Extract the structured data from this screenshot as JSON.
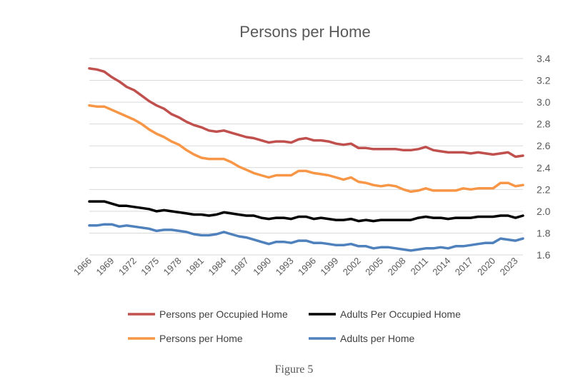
{
  "chart_data": {
    "type": "line",
    "title": "Persons per Home",
    "xlabel": "",
    "ylabel": "",
    "ylim": [
      1.6,
      3.4
    ],
    "yticks": [
      1.6,
      1.8,
      2.0,
      2.2,
      2.4,
      2.6,
      2.8,
      3.0,
      3.2,
      3.4
    ],
    "ytick_labels": [
      "1.6",
      "1.8",
      "2.0",
      "2.2",
      "2.4",
      "2.6",
      "2.8",
      "3.0",
      "3.2",
      "3.4"
    ],
    "y_axis_side": "right",
    "grid": true,
    "x_start": 1966,
    "x_end": 2024,
    "xtick_labels": [
      "1966",
      "1969",
      "1972",
      "1975",
      "1978",
      "1981",
      "1984",
      "1987",
      "1990",
      "1993",
      "1996",
      "1999",
      "2002",
      "2005",
      "2008",
      "2011",
      "2014",
      "2017",
      "2020",
      "2023"
    ],
    "legend_position": "bottom",
    "series": [
      {
        "name": "Persons per Occupied Home",
        "color": "#C0504D",
        "values": [
          3.31,
          3.3,
          3.28,
          3.23,
          3.19,
          3.14,
          3.11,
          3.06,
          3.01,
          2.97,
          2.94,
          2.89,
          2.86,
          2.82,
          2.79,
          2.77,
          2.74,
          2.73,
          2.74,
          2.72,
          2.7,
          2.68,
          2.67,
          2.65,
          2.63,
          2.64,
          2.64,
          2.63,
          2.66,
          2.67,
          2.65,
          2.65,
          2.64,
          2.62,
          2.61,
          2.62,
          2.58,
          2.58,
          2.57,
          2.57,
          2.57,
          2.57,
          2.56,
          2.56,
          2.57,
          2.59,
          2.56,
          2.55,
          2.54,
          2.54,
          2.54,
          2.53,
          2.54,
          2.53,
          2.52,
          2.53,
          2.54,
          2.5,
          2.51
        ]
      },
      {
        "name": "Adults Per Occupied Home",
        "color": "#000000",
        "values": [
          2.09,
          2.09,
          2.09,
          2.07,
          2.05,
          2.05,
          2.04,
          2.03,
          2.02,
          2.0,
          2.01,
          2.0,
          1.99,
          1.98,
          1.97,
          1.97,
          1.96,
          1.97,
          1.99,
          1.98,
          1.97,
          1.96,
          1.96,
          1.94,
          1.93,
          1.94,
          1.94,
          1.93,
          1.95,
          1.95,
          1.93,
          1.94,
          1.93,
          1.92,
          1.92,
          1.93,
          1.91,
          1.92,
          1.91,
          1.92,
          1.92,
          1.92,
          1.92,
          1.92,
          1.94,
          1.95,
          1.94,
          1.94,
          1.93,
          1.94,
          1.94,
          1.94,
          1.95,
          1.95,
          1.95,
          1.96,
          1.96,
          1.94,
          1.96
        ]
      },
      {
        "name": "Persons per Home",
        "color": "#F79646",
        "values": [
          2.97,
          2.96,
          2.96,
          2.93,
          2.9,
          2.87,
          2.84,
          2.8,
          2.75,
          2.71,
          2.68,
          2.64,
          2.61,
          2.56,
          2.52,
          2.49,
          2.48,
          2.48,
          2.48,
          2.45,
          2.41,
          2.38,
          2.35,
          2.33,
          2.31,
          2.33,
          2.33,
          2.33,
          2.37,
          2.37,
          2.35,
          2.34,
          2.33,
          2.31,
          2.29,
          2.31,
          2.27,
          2.26,
          2.24,
          2.23,
          2.24,
          2.23,
          2.2,
          2.18,
          2.19,
          2.21,
          2.19,
          2.19,
          2.19,
          2.19,
          2.21,
          2.2,
          2.21,
          2.21,
          2.21,
          2.26,
          2.26,
          2.23,
          2.24
        ]
      },
      {
        "name": "Adults per Home",
        "color": "#4F81BD",
        "values": [
          1.87,
          1.87,
          1.88,
          1.88,
          1.86,
          1.87,
          1.86,
          1.85,
          1.84,
          1.82,
          1.83,
          1.83,
          1.82,
          1.81,
          1.79,
          1.78,
          1.78,
          1.79,
          1.81,
          1.79,
          1.77,
          1.76,
          1.74,
          1.72,
          1.7,
          1.72,
          1.72,
          1.71,
          1.73,
          1.73,
          1.71,
          1.71,
          1.7,
          1.69,
          1.69,
          1.7,
          1.68,
          1.68,
          1.66,
          1.67,
          1.67,
          1.66,
          1.65,
          1.64,
          1.65,
          1.66,
          1.66,
          1.67,
          1.66,
          1.68,
          1.68,
          1.69,
          1.7,
          1.71,
          1.71,
          1.75,
          1.74,
          1.73,
          1.75
        ]
      }
    ]
  },
  "caption": "Figure 5"
}
